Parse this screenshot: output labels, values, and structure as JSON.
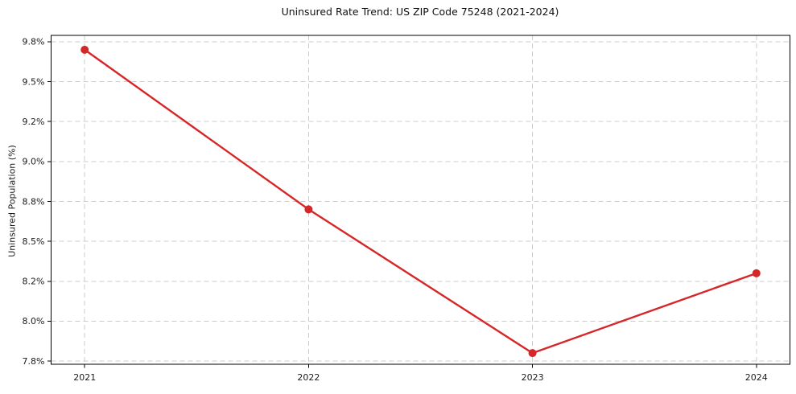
{
  "chart_data": {
    "type": "line",
    "title": "Uninsured Rate Trend: US ZIP Code 75248 (2021-2024)",
    "xlabel": "",
    "ylabel": "Uninsured Population (%)",
    "x": [
      2021,
      2022,
      2023,
      2024
    ],
    "series": [
      {
        "name": "Uninsured rate",
        "values": [
          9.7,
          8.7,
          7.8,
          8.3
        ],
        "color": "#d62728",
        "marker": "circle"
      }
    ],
    "xtick_values": [
      2021,
      2022,
      2023,
      2024
    ],
    "xtick_labels": [
      "2021",
      "2022",
      "2023",
      "2024"
    ],
    "ytick_values": [
      7.75,
      8.0,
      8.25,
      8.5,
      8.75,
      9.0,
      9.25,
      9.5,
      9.75
    ],
    "ytick_labels": [
      "7.8%",
      "8.0%",
      "8.2%",
      "8.5%",
      "8.8%",
      "9.0%",
      "9.2%",
      "9.5%",
      "9.8%"
    ],
    "xlim": [
      2020.85,
      2024.15
    ],
    "ylim": [
      7.73,
      9.79
    ],
    "grid": true,
    "grid_style": "dashed",
    "legend": false,
    "colors": {
      "line": "#d62728",
      "grid": "#cccccc",
      "spine": "#000000",
      "tick_text": "#1a1a1a",
      "background": "#ffffff"
    }
  }
}
